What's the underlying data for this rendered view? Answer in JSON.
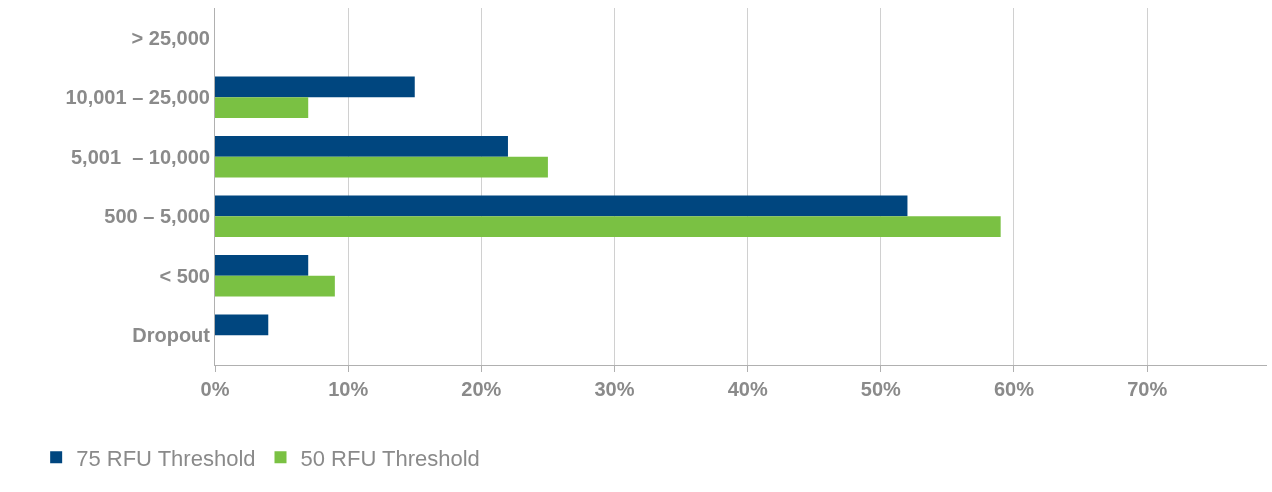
{
  "chart_data": {
    "type": "bar",
    "orientation": "horizontal",
    "categories": [
      "> 25,000",
      "10,001 – 25,000",
      "5,001  – 10,000",
      "500 – 5,000",
      "< 500",
      "Dropout"
    ],
    "series": [
      {
        "name": "75 RFU Threshold",
        "color": "#00467f",
        "values": [
          0,
          15,
          22,
          52,
          7,
          4
        ]
      },
      {
        "name": "50 RFU Threshold",
        "color": "#7ac143",
        "values": [
          0,
          7,
          25,
          59,
          9,
          0
        ]
      }
    ],
    "xlim": [
      0,
      79
    ],
    "xticks": [
      {
        "value": 0,
        "label": "0%"
      },
      {
        "value": 10,
        "label": "10%"
      },
      {
        "value": 20,
        "label": "20%"
      },
      {
        "value": 30,
        "label": "30%"
      },
      {
        "value": 40,
        "label": "40%"
      },
      {
        "value": 50,
        "label": "50%"
      },
      {
        "value": 60,
        "label": "60%"
      },
      {
        "value": 70,
        "label": "70%"
      }
    ],
    "grid": "x",
    "legend": "bottom left"
  }
}
